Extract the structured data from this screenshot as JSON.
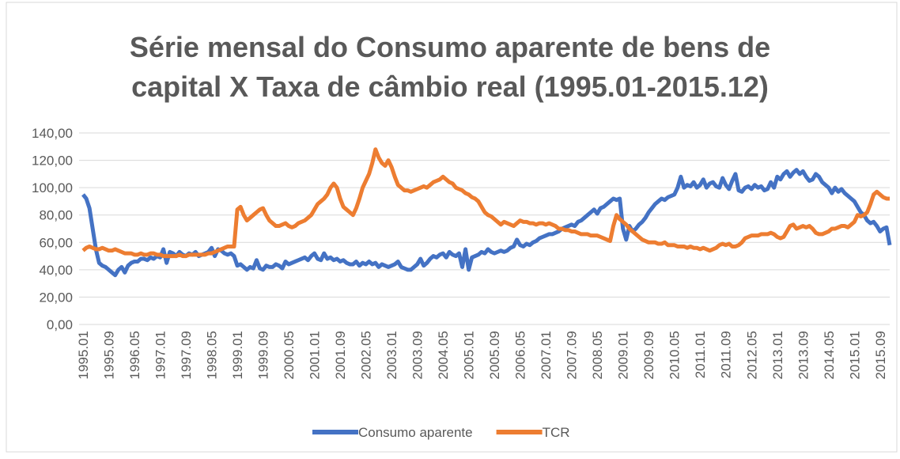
{
  "chart_data": {
    "type": "line",
    "title": "Série mensal do Consumo aparente de bens de capital X Taxa de câmbio real (1995.01-2015.12)",
    "categories": [
      "1995.01",
      null,
      null,
      null,
      null,
      null,
      null,
      null,
      "1995.09",
      null,
      null,
      null,
      null,
      null,
      null,
      null,
      "1996.05",
      null,
      null,
      null,
      null,
      null,
      null,
      null,
      "1997.01",
      null,
      null,
      null,
      null,
      null,
      null,
      null,
      "1997.09",
      null,
      null,
      null,
      null,
      null,
      null,
      null,
      "1998.05",
      null,
      null,
      null,
      null,
      null,
      null,
      null,
      "1999.01",
      null,
      null,
      null,
      null,
      null,
      null,
      null,
      "1999.09",
      null,
      null,
      null,
      null,
      null,
      null,
      null,
      "2000.05",
      null,
      null,
      null,
      null,
      null,
      null,
      null,
      "2001.01",
      null,
      null,
      null,
      null,
      null,
      null,
      null,
      "2001.09",
      null,
      null,
      null,
      null,
      null,
      null,
      null,
      "2002.05",
      null,
      null,
      null,
      null,
      null,
      null,
      null,
      "2003.01",
      null,
      null,
      null,
      null,
      null,
      null,
      null,
      "2003.09",
      null,
      null,
      null,
      null,
      null,
      null,
      null,
      "2004.05",
      null,
      null,
      null,
      null,
      null,
      null,
      null,
      "2005.01",
      null,
      null,
      null,
      null,
      null,
      null,
      null,
      "2005.09",
      null,
      null,
      null,
      null,
      null,
      null,
      null,
      "2006.05",
      null,
      null,
      null,
      null,
      null,
      null,
      null,
      "2007.01",
      null,
      null,
      null,
      null,
      null,
      null,
      null,
      "2007.09",
      null,
      null,
      null,
      null,
      null,
      null,
      null,
      "2008.05",
      null,
      null,
      null,
      null,
      null,
      null,
      null,
      "2009.01",
      null,
      null,
      null,
      null,
      null,
      null,
      null,
      "2009.09",
      null,
      null,
      null,
      null,
      null,
      null,
      null,
      "2010.05",
      null,
      null,
      null,
      null,
      null,
      null,
      null,
      "2011.01",
      null,
      null,
      null,
      null,
      null,
      null,
      null,
      "2011.09",
      null,
      null,
      null,
      null,
      null,
      null,
      null,
      "2012.05",
      null,
      null,
      null,
      null,
      null,
      null,
      null,
      "2013.01",
      null,
      null,
      null,
      null,
      null,
      null,
      null,
      "2013.09",
      null,
      null,
      null,
      null,
      null,
      null,
      null,
      "2014.05",
      null,
      null,
      null,
      null,
      null,
      null,
      null,
      "2015.01",
      null,
      null,
      null,
      null,
      null,
      null,
      null,
      "2015.09",
      null,
      null,
      null
    ],
    "series": [
      {
        "name": "Consumo aparente",
        "color": "#4472c4",
        "values": [
          95,
          92,
          85,
          70,
          55,
          45,
          43,
          42,
          40,
          38,
          36,
          40,
          42,
          38,
          43,
          45,
          46,
          46,
          48,
          48,
          47,
          49,
          48,
          50,
          49,
          55,
          45,
          53,
          52,
          50,
          53,
          51,
          50,
          52,
          51,
          53,
          50,
          51,
          52,
          53,
          56,
          50,
          55,
          54,
          52,
          51,
          52,
          50,
          43,
          44,
          42,
          40,
          42,
          41,
          47,
          41,
          40,
          43,
          42,
          42,
          44,
          43,
          41,
          46,
          44,
          45,
          46,
          47,
          48,
          49,
          47,
          50,
          52,
          48,
          47,
          52,
          48,
          49,
          47,
          48,
          46,
          47,
          45,
          44,
          44,
          46,
          43,
          45,
          44,
          46,
          44,
          45,
          42,
          44,
          43,
          42,
          43,
          44,
          46,
          42,
          41,
          40,
          40,
          42,
          44,
          48,
          43,
          45,
          48,
          50,
          49,
          51,
          52,
          49,
          53,
          51,
          50,
          52,
          42,
          55,
          40,
          49,
          50,
          51,
          53,
          52,
          55,
          53,
          52,
          53,
          54,
          53,
          54,
          56,
          57,
          62,
          58,
          57,
          59,
          58,
          60,
          61,
          63,
          64,
          65,
          66,
          66,
          67,
          68,
          70,
          71,
          72,
          73,
          72,
          75,
          76,
          78,
          80,
          82,
          84,
          81,
          85,
          86,
          88,
          90,
          92,
          91,
          92,
          70,
          62,
          72,
          68,
          70,
          73,
          75,
          78,
          82,
          85,
          88,
          90,
          92,
          91,
          93,
          94,
          95,
          100,
          108,
          100,
          102,
          101,
          104,
          100,
          102,
          106,
          100,
          103,
          104,
          101,
          100,
          107,
          102,
          99,
          105,
          110,
          98,
          97,
          100,
          101,
          99,
          102,
          100,
          101,
          98,
          99,
          104,
          100,
          108,
          106,
          110,
          112,
          108,
          111,
          113,
          110,
          112,
          108,
          105,
          106,
          110,
          108,
          104,
          102,
          100,
          96,
          100,
          97,
          99,
          96,
          94,
          92,
          90,
          86,
          82,
          80,
          76,
          74,
          75,
          72,
          68,
          70,
          71,
          58
        ]
      },
      {
        "name": "TCR",
        "color": "#ed7d31",
        "values": [
          54,
          56,
          57,
          56,
          55,
          55,
          56,
          55,
          54,
          54,
          55,
          54,
          53,
          52,
          52,
          52,
          51,
          51,
          52,
          51,
          51,
          52,
          52,
          51,
          51,
          50,
          50,
          50,
          50,
          50,
          51,
          50,
          50,
          51,
          51,
          51,
          51,
          51,
          51,
          52,
          52,
          53,
          54,
          55,
          56,
          57,
          57,
          57,
          84,
          86,
          80,
          76,
          78,
          80,
          82,
          84,
          85,
          80,
          76,
          74,
          72,
          72,
          73,
          74,
          72,
          71,
          72,
          74,
          75,
          76,
          78,
          80,
          84,
          88,
          90,
          92,
          95,
          100,
          103,
          100,
          92,
          86,
          84,
          82,
          80,
          85,
          92,
          100,
          105,
          110,
          118,
          128,
          122,
          118,
          116,
          120,
          115,
          108,
          102,
          100,
          98,
          98,
          97,
          98,
          99,
          100,
          101,
          100,
          102,
          104,
          105,
          106,
          108,
          106,
          104,
          103,
          100,
          99,
          98,
          96,
          95,
          93,
          92,
          90,
          86,
          82,
          80,
          79,
          77,
          75,
          73,
          75,
          74,
          73,
          72,
          74,
          76,
          75,
          75,
          74,
          74,
          73,
          74,
          74,
          73,
          74,
          73,
          72,
          70,
          70,
          69,
          69,
          68,
          68,
          67,
          66,
          66,
          66,
          65,
          65,
          65,
          64,
          63,
          62,
          61,
          72,
          80,
          77,
          75,
          73,
          70,
          68,
          66,
          64,
          62,
          61,
          60,
          60,
          60,
          59,
          59,
          60,
          58,
          58,
          58,
          57,
          57,
          57,
          56,
          57,
          56,
          56,
          55,
          56,
          55,
          54,
          55,
          56,
          58,
          59,
          58,
          59,
          57,
          57,
          58,
          60,
          63,
          64,
          65,
          65,
          65,
          66,
          66,
          66,
          67,
          66,
          64,
          63,
          64,
          68,
          72,
          73,
          70,
          71,
          72,
          71,
          72,
          70,
          67,
          66,
          66,
          67,
          68,
          70,
          70,
          71,
          72,
          72,
          71,
          73,
          75,
          80,
          79,
          80,
          82,
          88,
          95,
          97,
          95,
          93,
          92,
          92
        ]
      }
    ],
    "ylim": [
      0,
      140
    ],
    "yticks": [
      {
        "value": 0,
        "label": "0,00"
      },
      {
        "value": 20,
        "label": "20,00"
      },
      {
        "value": 40,
        "label": "40,00"
      },
      {
        "value": 60,
        "label": "60,00"
      },
      {
        "value": 80,
        "label": "80,00"
      },
      {
        "value": 100,
        "label": "100,00"
      },
      {
        "value": 120,
        "label": "120,00"
      },
      {
        "value": 140,
        "label": "140,00"
      }
    ],
    "grid": true,
    "legend": "bottom"
  }
}
